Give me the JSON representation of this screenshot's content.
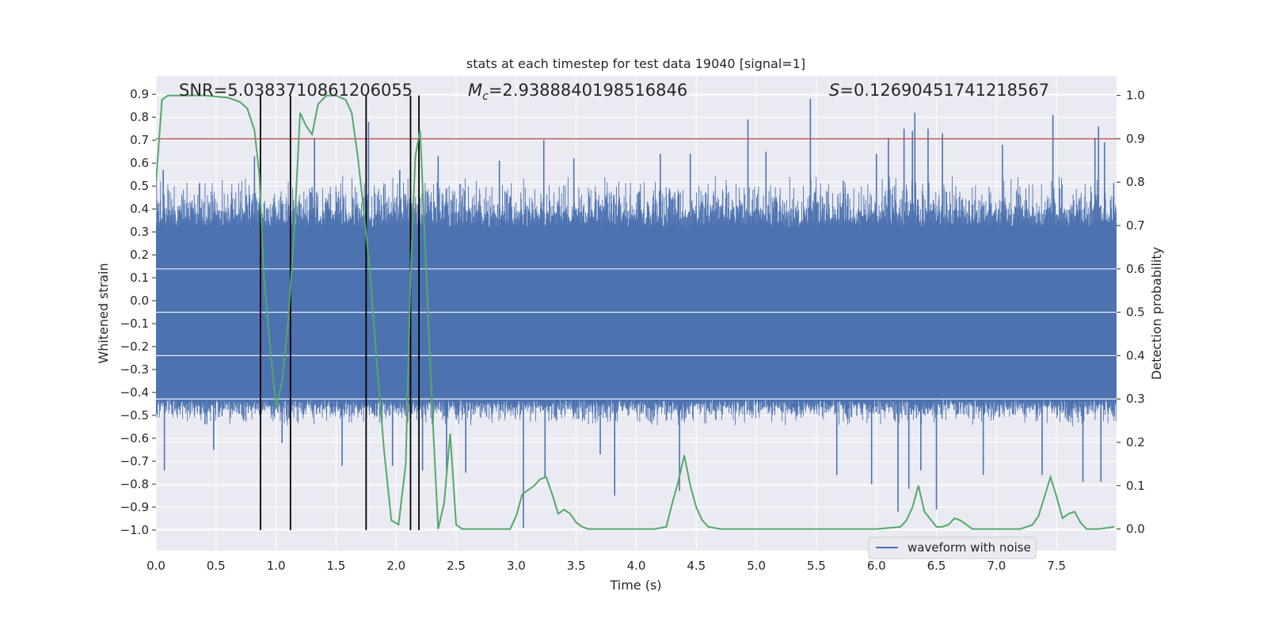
{
  "chart_data": {
    "type": "line",
    "title": "stats at each timestep for test data 19040 [signal=1]",
    "xlabel": "Time (s)",
    "ylabel": "Whitened strain",
    "y2label": "Detection probability",
    "xlim": [
      0,
      8
    ],
    "ylim": [
      -1.09,
      0.98
    ],
    "y2lim": [
      -0.05,
      1.045
    ],
    "xticks": [
      0,
      0.5,
      1,
      1.5,
      2,
      2.5,
      3,
      3.5,
      4,
      4.5,
      5,
      5.5,
      6,
      6.5,
      7,
      7.5
    ],
    "xtick_labels": [
      "0.0",
      "0.5",
      "1.0",
      "1.5",
      "2.0",
      "2.5",
      "3.0",
      "3.5",
      "4.0",
      "4.5",
      "5.0",
      "5.5",
      "6.0",
      "6.5",
      "7.0",
      "7.5"
    ],
    "yticks": [
      -1.0,
      -0.9,
      -0.8,
      -0.7,
      -0.6,
      -0.5,
      -0.4,
      -0.3,
      -0.2,
      -0.1,
      0.0,
      0.1,
      0.2,
      0.3,
      0.4,
      0.5,
      0.6,
      0.7,
      0.8,
      0.9
    ],
    "ytick_labels": [
      "−1.0",
      "−0.9",
      "−0.8",
      "−0.7",
      "−0.6",
      "−0.5",
      "−0.4",
      "−0.3",
      "−0.2",
      "−0.1",
      "0.0",
      "0.1",
      "0.2",
      "0.3",
      "0.4",
      "0.5",
      "0.6",
      "0.7",
      "0.8",
      "0.9"
    ],
    "y2ticks": [
      0.0,
      0.1,
      0.2,
      0.3,
      0.4,
      0.5,
      0.6,
      0.7,
      0.8,
      0.9,
      1.0
    ],
    "y2tick_labels": [
      "0.0",
      "0.1",
      "0.2",
      "0.3",
      "0.4",
      "0.5",
      "0.6",
      "0.7",
      "0.8",
      "0.9",
      "1.0"
    ],
    "annotations": {
      "snr": "SNR=5.0383710861206055",
      "mc_symbol": "M",
      "mc_subscript": "c",
      "mc_value": "=2.9388840198516846",
      "s_symbol": "S",
      "s_value": "=0.12690451741218567"
    },
    "threshold": {
      "y2": 0.9,
      "color": "#c44e52"
    },
    "vertical_lines_x": [
      0.87,
      1.12,
      1.75,
      2.12,
      2.19
    ],
    "series": [
      {
        "name": "waveform with noise",
        "axis": "left",
        "color": "#4c72b0",
        "core_band": [
          -0.43,
          0.32
        ],
        "typical_envelope": [
          -0.55,
          0.55
        ],
        "spikes": [
          {
            "x": 0.06,
            "y": 0.57
          },
          {
            "x": 0.07,
            "y": -0.74
          },
          {
            "x": 0.48,
            "y": -0.65
          },
          {
            "x": 0.82,
            "y": 0.63
          },
          {
            "x": 1.05,
            "y": -0.62
          },
          {
            "x": 1.12,
            "y": -0.69
          },
          {
            "x": 1.32,
            "y": 0.71
          },
          {
            "x": 1.55,
            "y": -0.72
          },
          {
            "x": 1.77,
            "y": 0.78
          },
          {
            "x": 1.97,
            "y": -0.72
          },
          {
            "x": 2.03,
            "y": 0.57
          },
          {
            "x": 2.22,
            "y": -0.74
          },
          {
            "x": 2.35,
            "y": 0.63
          },
          {
            "x": 2.42,
            "y": -0.75
          },
          {
            "x": 2.58,
            "y": -0.75
          },
          {
            "x": 2.86,
            "y": 0.61
          },
          {
            "x": 3.06,
            "y": -0.99
          },
          {
            "x": 3.23,
            "y": 0.7
          },
          {
            "x": 3.24,
            "y": -0.77
          },
          {
            "x": 3.48,
            "y": 0.62
          },
          {
            "x": 3.82,
            "y": -0.85
          },
          {
            "x": 3.7,
            "y": -0.67
          },
          {
            "x": 4.2,
            "y": 0.64
          },
          {
            "x": 4.36,
            "y": -0.83
          },
          {
            "x": 4.45,
            "y": 0.64
          },
          {
            "x": 4.93,
            "y": 0.79
          },
          {
            "x": 5.08,
            "y": 0.65
          },
          {
            "x": 5.45,
            "y": 0.88
          },
          {
            "x": 5.67,
            "y": -0.76
          },
          {
            "x": 5.96,
            "y": -0.8
          },
          {
            "x": 6.0,
            "y": 0.64
          },
          {
            "x": 6.1,
            "y": 0.71
          },
          {
            "x": 6.18,
            "y": -0.92
          },
          {
            "x": 6.23,
            "y": 0.75
          },
          {
            "x": 6.27,
            "y": -0.82
          },
          {
            "x": 6.3,
            "y": 0.74
          },
          {
            "x": 6.32,
            "y": 0.82
          },
          {
            "x": 6.37,
            "y": -0.74
          },
          {
            "x": 6.43,
            "y": 0.75
          },
          {
            "x": 6.5,
            "y": -0.91
          },
          {
            "x": 6.55,
            "y": 0.73
          },
          {
            "x": 6.89,
            "y": -0.76
          },
          {
            "x": 7.05,
            "y": 0.68
          },
          {
            "x": 7.38,
            "y": -0.76
          },
          {
            "x": 7.47,
            "y": 0.81
          },
          {
            "x": 7.72,
            "y": -0.79
          },
          {
            "x": 7.82,
            "y": 0.71
          },
          {
            "x": 7.85,
            "y": 0.76
          },
          {
            "x": 7.87,
            "y": -0.79
          },
          {
            "x": 7.9,
            "y": 0.69
          }
        ]
      },
      {
        "name": "detection probability",
        "axis": "right",
        "color": "#55a868",
        "x": [
          0.0,
          0.05,
          0.1,
          0.2,
          0.4,
          0.6,
          0.7,
          0.76,
          0.82,
          0.86,
          0.9,
          0.95,
          1.0,
          1.05,
          1.1,
          1.15,
          1.2,
          1.25,
          1.3,
          1.35,
          1.42,
          1.5,
          1.58,
          1.63,
          1.68,
          1.72,
          1.78,
          1.84,
          1.9,
          1.96,
          2.02,
          2.08,
          2.12,
          2.16,
          2.2,
          2.25,
          2.3,
          2.35,
          2.4,
          2.45,
          2.5,
          2.55,
          2.6,
          2.7,
          2.8,
          2.9,
          2.95,
          3.0,
          3.05,
          3.1,
          3.15,
          3.2,
          3.25,
          3.3,
          3.35,
          3.4,
          3.45,
          3.5,
          3.55,
          3.6,
          3.8,
          4.0,
          4.15,
          4.25,
          4.3,
          4.35,
          4.4,
          4.45,
          4.5,
          4.55,
          4.6,
          4.7,
          4.8,
          5.0,
          5.5,
          6.0,
          6.2,
          6.25,
          6.3,
          6.35,
          6.4,
          6.5,
          6.55,
          6.6,
          6.65,
          6.7,
          6.8,
          7.0,
          7.2,
          7.3,
          7.35,
          7.4,
          7.45,
          7.5,
          7.55,
          7.6,
          7.65,
          7.7,
          7.75,
          7.85,
          7.98
        ],
        "y": [
          0.8,
          0.99,
          1.0,
          1.0,
          1.0,
          0.995,
          0.985,
          0.97,
          0.92,
          0.82,
          0.58,
          0.42,
          0.28,
          0.34,
          0.48,
          0.68,
          0.96,
          0.93,
          0.91,
          0.98,
          1.0,
          1.0,
          0.99,
          0.96,
          0.86,
          0.76,
          0.6,
          0.38,
          0.18,
          0.02,
          0.01,
          0.15,
          0.58,
          0.86,
          0.92,
          0.6,
          0.28,
          0.0,
          0.06,
          0.22,
          0.01,
          0.0,
          0.0,
          0.0,
          0.0,
          0.0,
          0.0,
          0.03,
          0.08,
          0.09,
          0.1,
          0.115,
          0.12,
          0.08,
          0.035,
          0.045,
          0.035,
          0.015,
          0.005,
          0.0,
          0.0,
          0.0,
          0.0,
          0.005,
          0.06,
          0.11,
          0.17,
          0.1,
          0.05,
          0.02,
          0.005,
          0.0,
          0.0,
          0.0,
          0.0,
          0.0,
          0.005,
          0.02,
          0.05,
          0.1,
          0.04,
          0.005,
          0.005,
          0.01,
          0.025,
          0.02,
          0.0,
          0.0,
          0.0,
          0.01,
          0.03,
          0.075,
          0.12,
          0.075,
          0.025,
          0.035,
          0.04,
          0.015,
          0.0,
          0.0,
          0.005
        ]
      }
    ],
    "legend": {
      "entries": [
        "waveform with noise"
      ],
      "placement": "lower-right"
    },
    "grid": true
  }
}
